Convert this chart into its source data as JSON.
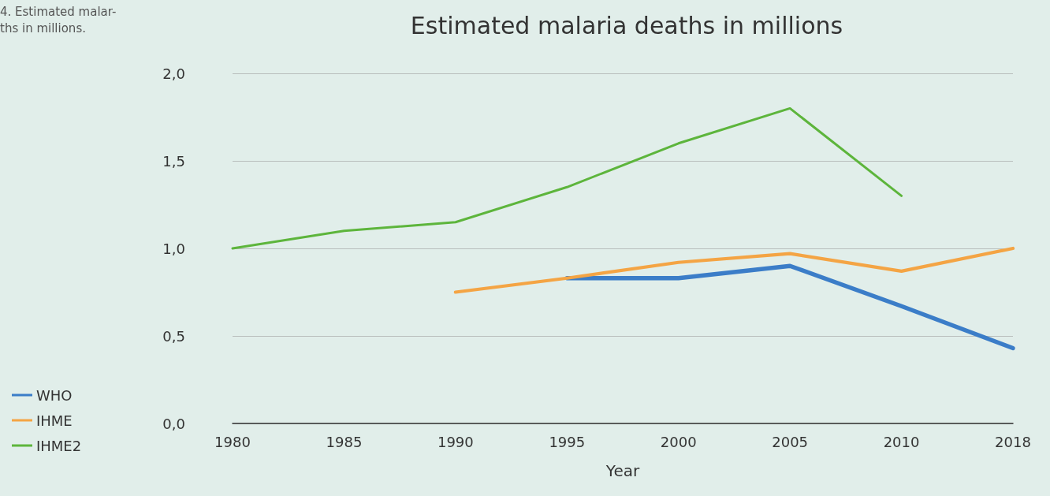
{
  "chart_data": {
    "type": "line",
    "title": "Estimated malaria deaths in millions",
    "xlabel": "Year",
    "annotations": [
      "4. Estimated malar-",
      "ths in millions."
    ],
    "categories": [
      "1980",
      "1985",
      "1990",
      "1995",
      "2000",
      "2005",
      "2010",
      "2018"
    ],
    "series": [
      {
        "name": "WHO",
        "color": "#3b7dc8",
        "values": [
          null,
          null,
          null,
          0.83,
          0.83,
          0.9,
          0.67,
          0.43
        ]
      },
      {
        "name": "IHME",
        "color": "#f4a444",
        "values": [
          null,
          null,
          0.75,
          0.83,
          0.92,
          0.97,
          0.87,
          1.0
        ]
      },
      {
        "name": "IHME2",
        "color": "#5db53c",
        "values": [
          1.0,
          1.1,
          1.15,
          1.35,
          1.6,
          1.8,
          1.3,
          null
        ]
      }
    ],
    "ylim": [
      0,
      2
    ],
    "yticks": [
      {
        "value": 0,
        "label": "0,0"
      },
      {
        "value": 0.5,
        "label": "0,5"
      },
      {
        "value": 1,
        "label": "1,0"
      },
      {
        "value": 1.5,
        "label": "1,5"
      },
      {
        "value": 2,
        "label": "2,0"
      }
    ],
    "grid": "y",
    "legend": "bottom left",
    "marker": "none",
    "line_style": "solid"
  }
}
